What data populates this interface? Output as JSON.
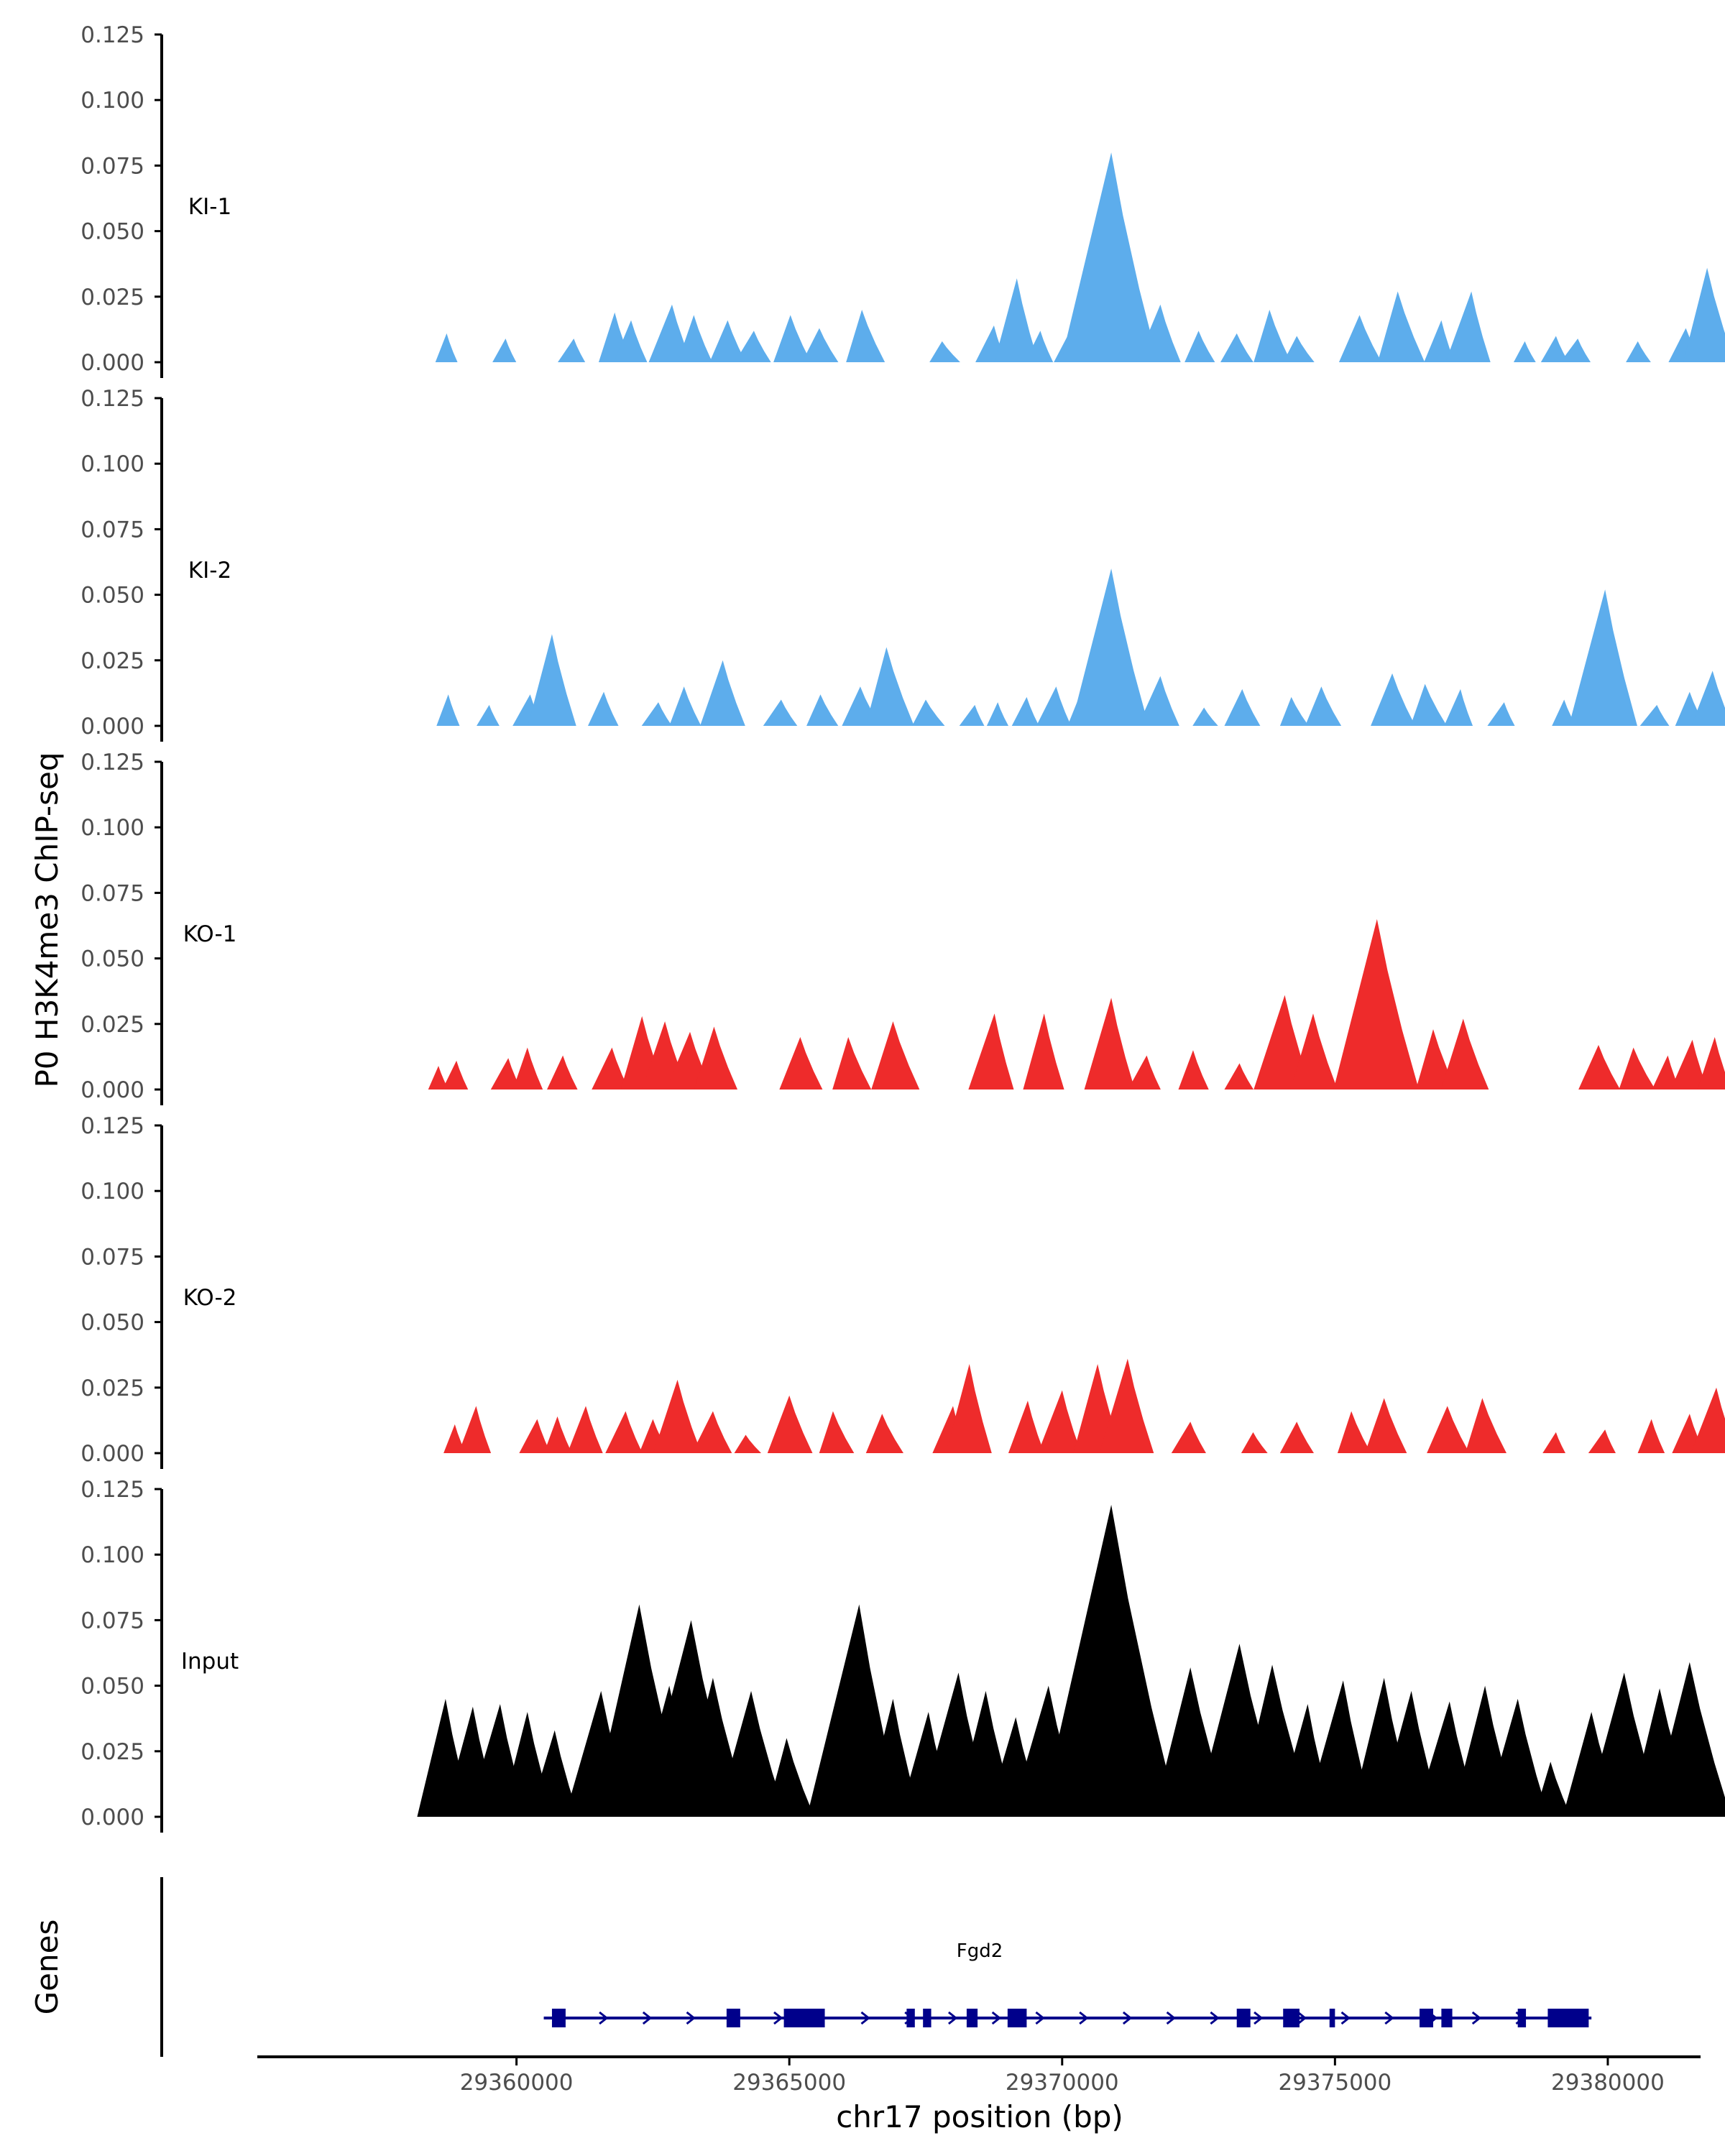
{
  "chart_data": {
    "type": "area",
    "ylabel": "P0 H3K4me3 ChIP-seq",
    "xlabel": "chr17 position (bp)",
    "genes_label": "Genes",
    "xlim": [
      29355250,
      29381700
    ],
    "x_ticks": [
      29360000,
      29365000,
      29370000,
      29375000,
      29380000
    ],
    "x_tick_labels": [
      "29360000",
      "29365000",
      "29370000",
      "29375000",
      "29380000"
    ],
    "ylim": [
      0,
      0.125
    ],
    "y_ticks": [
      0,
      0.025,
      0.05,
      0.075,
      0.1,
      0.125
    ],
    "y_tick_labels": [
      "0.000",
      "0.025",
      "0.050",
      "0.075",
      "0.100",
      "0.125"
    ],
    "tracks": [
      {
        "name": "KI-1",
        "color": "#5DADEC",
        "peaks": [
          [
            29358720,
            0.011
          ],
          [
            29359800,
            0.009
          ],
          [
            29361050,
            0.009
          ],
          [
            29361800,
            0.019
          ],
          [
            29362100,
            0.016
          ],
          [
            29362850,
            0.022
          ],
          [
            29363250,
            0.018
          ],
          [
            29363870,
            0.016
          ],
          [
            29364350,
            0.012
          ],
          [
            29365020,
            0.018
          ],
          [
            29365550,
            0.013
          ],
          [
            29366330,
            0.02
          ],
          [
            29367800,
            0.008
          ],
          [
            29368750,
            0.014
          ],
          [
            29369170,
            0.032
          ],
          [
            29369600,
            0.012
          ],
          [
            29370200,
            0.014
          ],
          [
            29370700,
            0.026
          ],
          [
            29370900,
            0.08
          ],
          [
            29371800,
            0.022
          ],
          [
            29372500,
            0.012
          ],
          [
            29373200,
            0.011
          ],
          [
            29373800,
            0.02
          ],
          [
            29374300,
            0.01
          ],
          [
            29375450,
            0.018
          ],
          [
            29376150,
            0.027
          ],
          [
            29376950,
            0.016
          ],
          [
            29377500,
            0.027
          ],
          [
            29378480,
            0.008
          ],
          [
            29379050,
            0.01
          ],
          [
            29379450,
            0.009
          ],
          [
            29380550,
            0.008
          ],
          [
            29381430,
            0.013
          ],
          [
            29381820,
            0.036
          ]
        ]
      },
      {
        "name": "KI-2",
        "color": "#5DADEC",
        "peaks": [
          [
            29358750,
            0.012
          ],
          [
            29359500,
            0.008
          ],
          [
            29360250,
            0.012
          ],
          [
            29360650,
            0.035
          ],
          [
            29361600,
            0.013
          ],
          [
            29362600,
            0.009
          ],
          [
            29363070,
            0.015
          ],
          [
            29363780,
            0.025
          ],
          [
            29364850,
            0.01
          ],
          [
            29365570,
            0.012
          ],
          [
            29366300,
            0.015
          ],
          [
            29366780,
            0.03
          ],
          [
            29367500,
            0.01
          ],
          [
            29368400,
            0.008
          ],
          [
            29368820,
            0.009
          ],
          [
            29369350,
            0.011
          ],
          [
            29369890,
            0.015
          ],
          [
            29370350,
            0.013
          ],
          [
            29370900,
            0.06
          ],
          [
            29371800,
            0.019
          ],
          [
            29372600,
            0.007
          ],
          [
            29373300,
            0.014
          ],
          [
            29374200,
            0.011
          ],
          [
            29374750,
            0.015
          ],
          [
            29376050,
            0.02
          ],
          [
            29376650,
            0.016
          ],
          [
            29377300,
            0.014
          ],
          [
            29378100,
            0.009
          ],
          [
            29379200,
            0.01
          ],
          [
            29379950,
            0.052
          ],
          [
            29380900,
            0.008
          ],
          [
            29381500,
            0.013
          ],
          [
            29381920,
            0.021
          ]
        ]
      },
      {
        "name": "KO-1",
        "color": "#EE2B2B",
        "peaks": [
          [
            29358570,
            0.009
          ],
          [
            29358900,
            0.011
          ],
          [
            29359850,
            0.012
          ],
          [
            29360200,
            0.016
          ],
          [
            29360850,
            0.013
          ],
          [
            29361750,
            0.016
          ],
          [
            29362300,
            0.028
          ],
          [
            29362720,
            0.026
          ],
          [
            29363180,
            0.022
          ],
          [
            29363620,
            0.024
          ],
          [
            29365200,
            0.02
          ],
          [
            29366080,
            0.02
          ],
          [
            29366900,
            0.026
          ],
          [
            29368760,
            0.029
          ],
          [
            29369670,
            0.029
          ],
          [
            29370900,
            0.035
          ],
          [
            29371550,
            0.013
          ],
          [
            29372400,
            0.015
          ],
          [
            29373250,
            0.01
          ],
          [
            29374080,
            0.036
          ],
          [
            29374600,
            0.029
          ],
          [
            29375770,
            0.065
          ],
          [
            29376800,
            0.023
          ],
          [
            29377350,
            0.027
          ],
          [
            29379830,
            0.017
          ],
          [
            29380470,
            0.016
          ],
          [
            29381100,
            0.013
          ],
          [
            29381550,
            0.019
          ],
          [
            29381960,
            0.02
          ]
        ]
      },
      {
        "name": "KO-2",
        "color": "#EE2B2B",
        "peaks": [
          [
            29358870,
            0.011
          ],
          [
            29359260,
            0.018
          ],
          [
            29360380,
            0.013
          ],
          [
            29360750,
            0.014
          ],
          [
            29361270,
            0.018
          ],
          [
            29362000,
            0.016
          ],
          [
            29362500,
            0.013
          ],
          [
            29362950,
            0.028
          ],
          [
            29363600,
            0.016
          ],
          [
            29364200,
            0.007
          ],
          [
            29365000,
            0.022
          ],
          [
            29365800,
            0.016
          ],
          [
            29366700,
            0.015
          ],
          [
            29368000,
            0.018
          ],
          [
            29368300,
            0.034
          ],
          [
            29369370,
            0.02
          ],
          [
            29370000,
            0.024
          ],
          [
            29370650,
            0.034
          ],
          [
            29371200,
            0.036
          ],
          [
            29372350,
            0.012
          ],
          [
            29373500,
            0.008
          ],
          [
            29374300,
            0.012
          ],
          [
            29375300,
            0.016
          ],
          [
            29375900,
            0.021
          ],
          [
            29377060,
            0.018
          ],
          [
            29377700,
            0.021
          ],
          [
            29379050,
            0.008
          ],
          [
            29379950,
            0.009
          ],
          [
            29380800,
            0.013
          ],
          [
            29381500,
            0.015
          ],
          [
            29381990,
            0.025
          ]
        ]
      },
      {
        "name": "Input",
        "color": "#000000",
        "peaks": [
          [
            29358700,
            0.045
          ],
          [
            29359200,
            0.042
          ],
          [
            29359700,
            0.043
          ],
          [
            29360200,
            0.04
          ],
          [
            29360700,
            0.033
          ],
          [
            29361550,
            0.048
          ],
          [
            29362250,
            0.081
          ],
          [
            29362800,
            0.05
          ],
          [
            29363200,
            0.075
          ],
          [
            29363600,
            0.053
          ],
          [
            29364300,
            0.048
          ],
          [
            29364950,
            0.03
          ],
          [
            29365700,
            0.024
          ],
          [
            29366280,
            0.081
          ],
          [
            29366900,
            0.045
          ],
          [
            29367550,
            0.04
          ],
          [
            29368100,
            0.055
          ],
          [
            29368600,
            0.048
          ],
          [
            29369150,
            0.038
          ],
          [
            29369750,
            0.05
          ],
          [
            29370400,
            0.034
          ],
          [
            29370900,
            0.119
          ],
          [
            29371550,
            0.02
          ],
          [
            29372350,
            0.057
          ],
          [
            29373250,
            0.066
          ],
          [
            29373850,
            0.058
          ],
          [
            29374500,
            0.043
          ],
          [
            29375150,
            0.052
          ],
          [
            29375900,
            0.053
          ],
          [
            29376400,
            0.048
          ],
          [
            29377100,
            0.044
          ],
          [
            29377750,
            0.05
          ],
          [
            29378350,
            0.045
          ],
          [
            29378950,
            0.021
          ],
          [
            29379700,
            0.04
          ],
          [
            29380300,
            0.055
          ],
          [
            29380950,
            0.049
          ],
          [
            29381500,
            0.059
          ],
          [
            29381980,
            0.01
          ]
        ]
      }
    ],
    "gene": {
      "name": "Fgd2",
      "start": 29360500,
      "end": 29379700,
      "strand": "+",
      "color": "#00008B",
      "exons": [
        [
          29360650,
          29360900
        ],
        [
          29363850,
          29364100
        ],
        [
          29364900,
          29365650
        ],
        [
          29367150,
          29367300
        ],
        [
          29367450,
          29367600
        ],
        [
          29368250,
          29368450
        ],
        [
          29369000,
          29369350
        ],
        [
          29373200,
          29373450
        ],
        [
          29374050,
          29374350
        ],
        [
          29374900,
          29375000
        ],
        [
          29376550,
          29376800
        ],
        [
          29376950,
          29377150
        ],
        [
          29378350,
          29378500
        ],
        [
          29378900,
          29379650
        ]
      ]
    }
  }
}
